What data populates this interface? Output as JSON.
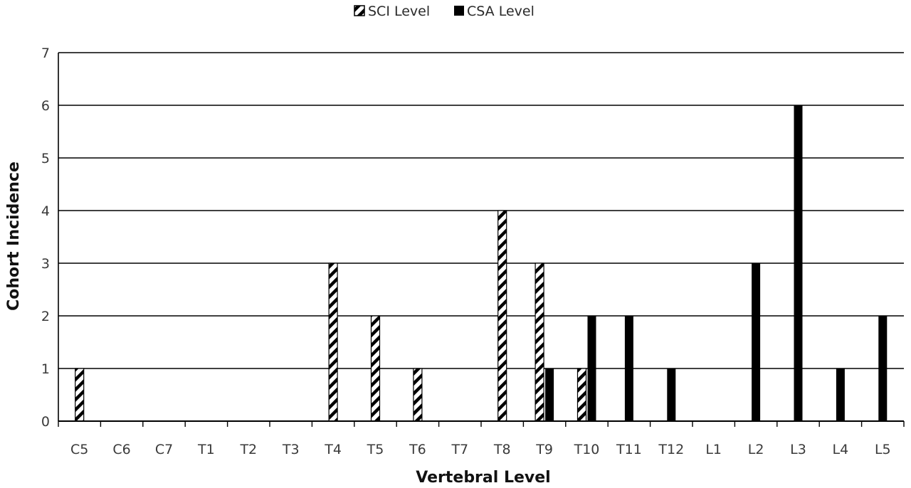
{
  "chart_data": {
    "type": "bar",
    "title": "",
    "xlabel": "Vertebral Level",
    "ylabel": "Cohort Incidence",
    "ylim": [
      0,
      7
    ],
    "yticks": [
      0,
      1,
      2,
      3,
      4,
      5,
      6,
      7
    ],
    "grid": true,
    "legend_position": "top-center",
    "categories": [
      "C5",
      "C6",
      "C7",
      "T1",
      "T2",
      "T3",
      "T4",
      "T5",
      "T6",
      "T7",
      "T8",
      "T9",
      "T10",
      "T11",
      "T12",
      "L1",
      "L2",
      "L3",
      "L4",
      "L5"
    ],
    "series": [
      {
        "name": "SCI Level",
        "pattern": "hatched",
        "color": "#000000",
        "values": [
          1,
          0,
          0,
          0,
          0,
          0,
          3,
          2,
          1,
          0,
          4,
          3,
          1,
          0,
          0,
          0,
          0,
          0,
          0,
          0
        ]
      },
      {
        "name": "CSA Level",
        "pattern": "solid",
        "color": "#000000",
        "values": [
          0,
          0,
          0,
          0,
          0,
          0,
          0,
          0,
          0,
          0,
          0,
          1,
          2,
          2,
          1,
          0,
          3,
          6,
          1,
          2
        ]
      }
    ]
  }
}
